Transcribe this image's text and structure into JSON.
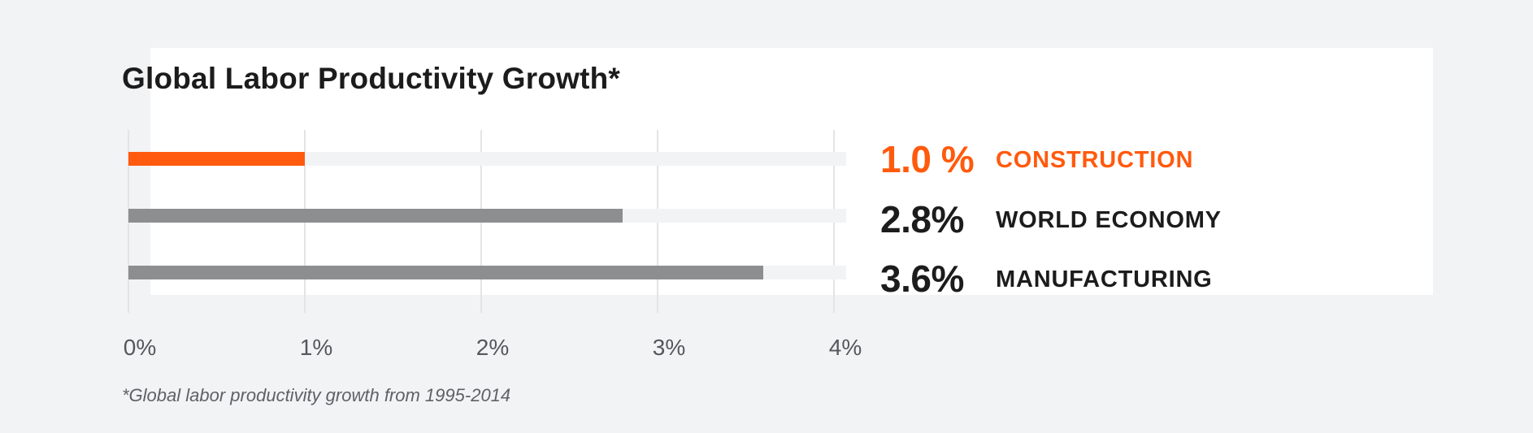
{
  "title": "Global Labor Productivity Growth*",
  "footnote": "*Global labor productivity growth from 1995-2014",
  "colors": {
    "background": "#f2f3f5",
    "card": "#ffffff",
    "highlight": "#ff5a0d",
    "neutral_bar": "#8d8e90",
    "track": "#f2f3f5",
    "gridline": "#e3e4e6",
    "text_dark": "#1c1c1c"
  },
  "axis": {
    "ticks": [
      "0%",
      "1%",
      "2%",
      "3%",
      "4%"
    ]
  },
  "rows": [
    {
      "value_label": "1.0 %",
      "category": "CONSTRUCTION",
      "value": 1.0,
      "highlight": true
    },
    {
      "value_label": "2.8%",
      "category": "WORLD ECONOMY",
      "value": 2.8,
      "highlight": false
    },
    {
      "value_label": "3.6%",
      "category": "MANUFACTURING",
      "value": 3.6,
      "highlight": false
    }
  ],
  "chart_data": {
    "type": "bar",
    "orientation": "horizontal",
    "title": "Global Labor Productivity Growth*",
    "categories": [
      "Construction",
      "World Economy",
      "Manufacturing"
    ],
    "values": [
      1.0,
      2.8,
      3.6
    ],
    "value_labels": [
      "1.0 %",
      "2.8%",
      "3.6%"
    ],
    "xlabel": "",
    "ylabel": "",
    "xlim": [
      0,
      4
    ],
    "x_ticks": [
      "0%",
      "1%",
      "2%",
      "3%",
      "4%"
    ],
    "grid": true,
    "highlighted_category": "Construction",
    "annotation": "*Global labor productivity growth from 1995-2014"
  }
}
